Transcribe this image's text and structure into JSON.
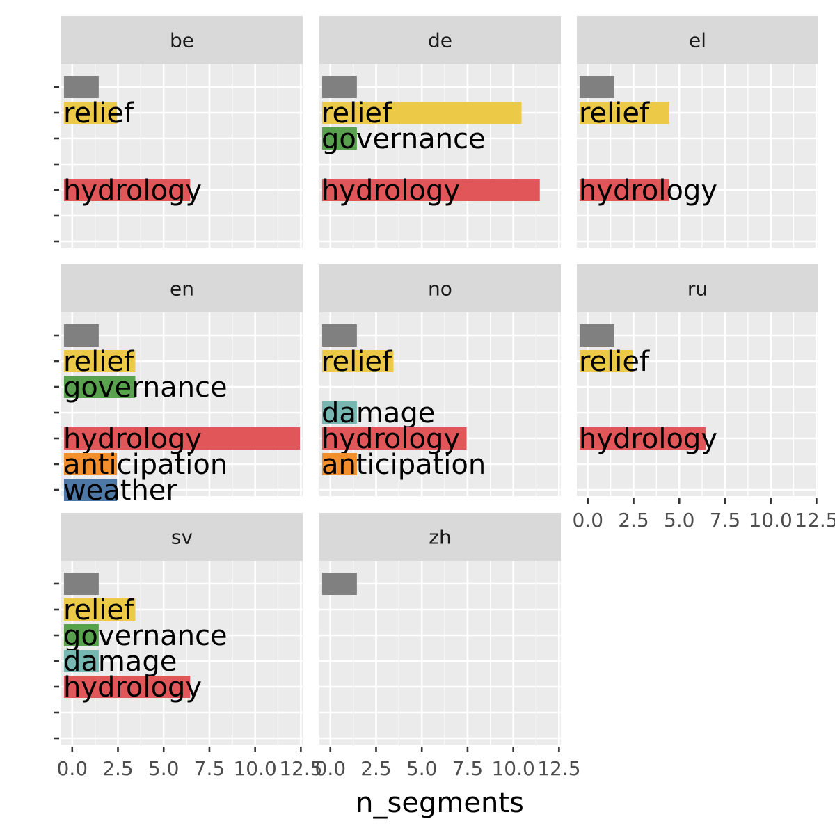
{
  "chart_data": {
    "type": "bar",
    "orientation": "horizontal",
    "facet_layout": "wrap 3 columns",
    "xlabel": "n_segments",
    "ylabel": "",
    "xlim": [
      -0.6,
      12.6
    ],
    "x_ticks": [
      "0.0",
      "2.5",
      "5.0",
      "7.5",
      "10.0",
      "12.5"
    ],
    "x_tick_values": [
      0,
      2.5,
      5,
      7.5,
      10,
      12.5
    ],
    "category_slots": [
      "",
      "relief",
      "governance",
      "damage",
      "hydrology",
      "anticipation",
      "weather"
    ],
    "colors": {
      "": "#808080",
      "relief": "#EDC948",
      "governance": "#59A14F",
      "damage": "#76B7B2",
      "hydrology": "#E15759",
      "anticipation": "#F28E2B",
      "weather": "#4E79A7"
    },
    "background": "#EBEBEB",
    "grid": true,
    "legend": "none",
    "facets": [
      {
        "name": "be",
        "bars": [
          {
            "category": "",
            "value": 1
          },
          {
            "category": "relief",
            "value": 2
          },
          {
            "category": "hydrology",
            "value": 6
          }
        ]
      },
      {
        "name": "de",
        "bars": [
          {
            "category": "",
            "value": 1
          },
          {
            "category": "relief",
            "value": 10
          },
          {
            "category": "governance",
            "value": 1
          },
          {
            "category": "hydrology",
            "value": 11
          }
        ]
      },
      {
        "name": "el",
        "bars": [
          {
            "category": "",
            "value": 1
          },
          {
            "category": "relief",
            "value": 4
          },
          {
            "category": "hydrology",
            "value": 4
          }
        ]
      },
      {
        "name": "en",
        "bars": [
          {
            "category": "",
            "value": 1
          },
          {
            "category": "relief",
            "value": 3
          },
          {
            "category": "governance",
            "value": 3
          },
          {
            "category": "hydrology",
            "value": 12
          },
          {
            "category": "anticipation",
            "value": 2
          },
          {
            "category": "weather",
            "value": 2
          }
        ]
      },
      {
        "name": "no",
        "bars": [
          {
            "category": "",
            "value": 1
          },
          {
            "category": "relief",
            "value": 3
          },
          {
            "category": "damage",
            "value": 1
          },
          {
            "category": "hydrology",
            "value": 7
          },
          {
            "category": "anticipation",
            "value": 1
          }
        ]
      },
      {
        "name": "ru",
        "bars": [
          {
            "category": "",
            "value": 1
          },
          {
            "category": "relief",
            "value": 2
          },
          {
            "category": "hydrology",
            "value": 6
          }
        ]
      },
      {
        "name": "sv",
        "bars": [
          {
            "category": "",
            "value": 1
          },
          {
            "category": "relief",
            "value": 3
          },
          {
            "category": "governance",
            "value": 1
          },
          {
            "category": "damage",
            "value": 1
          },
          {
            "category": "hydrology",
            "value": 6
          }
        ]
      },
      {
        "name": "zh",
        "bars": [
          {
            "category": "",
            "value": 1
          }
        ]
      }
    ]
  }
}
